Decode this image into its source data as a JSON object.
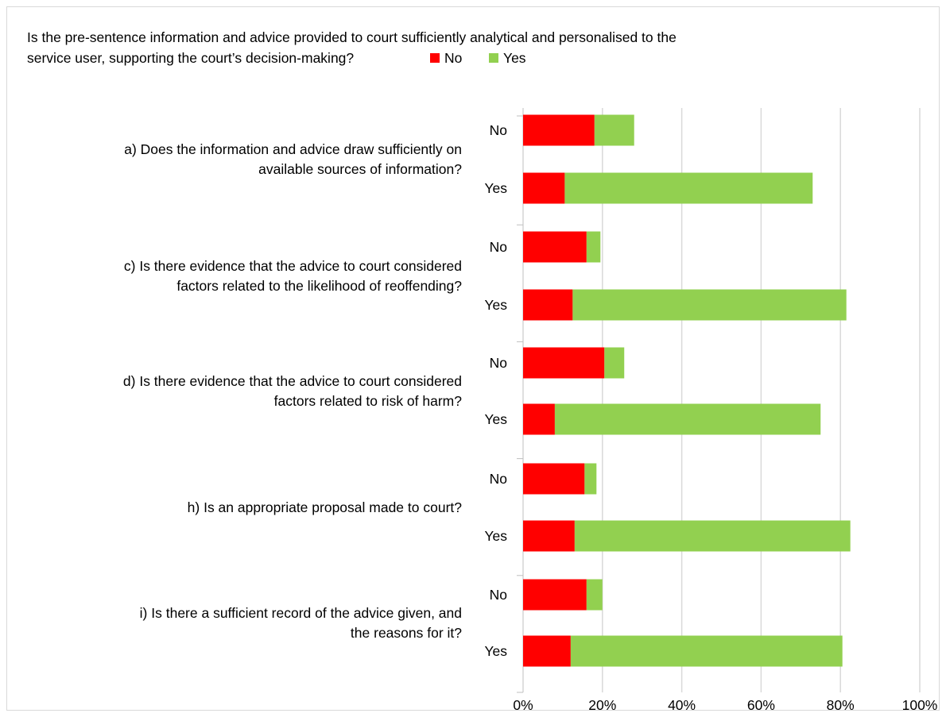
{
  "chart_data": {
    "type": "bar",
    "orientation": "horizontal",
    "stacked": true,
    "title": "Is the pre-sentence information and advice provided to court sufficiently analytical and personalised to the service user, supporting the court’s decision-making?",
    "title_lines": [
      "Is the pre-sentence information and advice provided to court sufficiently analytical and personalised to the",
      "service user, supporting the court’s decision-making?"
    ],
    "legend": [
      {
        "name": "No",
        "color": "#ff0000"
      },
      {
        "name": "Yes",
        "color": "#92d050"
      }
    ],
    "legend_position": "top",
    "groups": [
      {
        "label": "a) Does the information and advice draw sufficiently on available sources of information?",
        "label_lines": [
          "a) Does the information and advice draw sufficiently on",
          "available sources of information?"
        ],
        "rows": [
          {
            "category": "No",
            "no": 18,
            "yes": 10
          },
          {
            "category": "Yes",
            "no": 10.5,
            "yes": 62.5
          }
        ]
      },
      {
        "label": "c) Is there evidence that the advice to court considered factors related to the likelihood of reoffending?",
        "label_lines": [
          "c) Is there evidence that the advice to court considered",
          "factors related to the likelihood of reoffending?"
        ],
        "rows": [
          {
            "category": "No",
            "no": 16,
            "yes": 3.5
          },
          {
            "category": "Yes",
            "no": 12.5,
            "yes": 69
          }
        ]
      },
      {
        "label": "d) Is there evidence that the advice to court considered factors related to risk of harm?",
        "label_lines": [
          "d) Is there evidence that the advice to court considered",
          "factors related to risk of harm?"
        ],
        "rows": [
          {
            "category": "No",
            "no": 20.5,
            "yes": 5
          },
          {
            "category": "Yes",
            "no": 8,
            "yes": 67
          }
        ]
      },
      {
        "label": "h) Is an appropriate proposal made to court?",
        "label_lines": [
          "h) Is an appropriate proposal made to court?"
        ],
        "rows": [
          {
            "category": "No",
            "no": 15.5,
            "yes": 3
          },
          {
            "category": "Yes",
            "no": 13,
            "yes": 69.5
          }
        ]
      },
      {
        "label": "i) Is there a sufficient record of the advice given, and the reasons for it?",
        "label_lines": [
          "i) Is there a sufficient record of the advice given, and",
          "the reasons for it?"
        ],
        "rows": [
          {
            "category": "No",
            "no": 16,
            "yes": 4
          },
          {
            "category": "Yes",
            "no": 12,
            "yes": 68.5
          }
        ]
      }
    ],
    "xlim": [
      0,
      100
    ],
    "x_ticks": [
      "0%",
      "20%",
      "40%",
      "60%",
      "80%",
      "100%"
    ],
    "x_tick_values": [
      0,
      20,
      40,
      60,
      80,
      100
    ],
    "xlabel": "",
    "ylabel": "",
    "grid": "vertical"
  }
}
